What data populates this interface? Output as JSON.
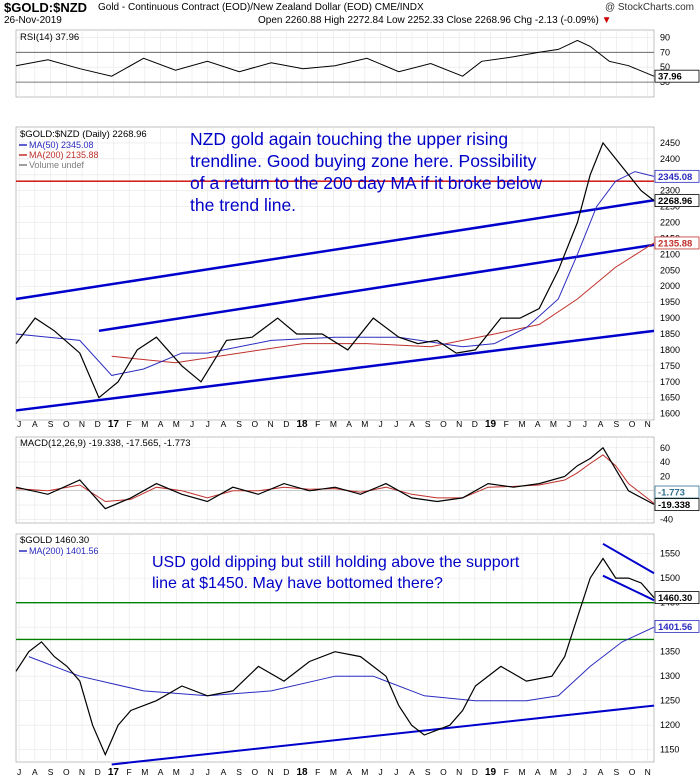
{
  "header": {
    "symbol": "$GOLD:$NZD",
    "description": "Gold - Continuous Contract (EOD)/New Zealand Dollar (EOD) CME/INDX",
    "credit": "@ StockCharts.com",
    "date": "26-Nov-2019",
    "ohlc": "Open 2260.88 High 2272.84 Low 2252.33 Close 2268.96 Chg -2.13 (-0.09%)",
    "down_marker": "▼"
  },
  "x_tick_labels": [
    "J",
    "A",
    "S",
    "O",
    "N",
    "D",
    "17",
    "F",
    "M",
    "A",
    "M",
    "J",
    "J",
    "A",
    "S",
    "O",
    "N",
    "D",
    "18",
    "F",
    "M",
    "A",
    "M",
    "J",
    "J",
    "A",
    "S",
    "O",
    "N",
    "D",
    "19",
    "F",
    "M",
    "A",
    "M",
    "J",
    "J",
    "A",
    "S",
    "O",
    "N"
  ],
  "colors": {
    "price": "#000000",
    "ma50": "#2b2bbf",
    "ma200": "#c0302c",
    "trendline": "#0000cc",
    "support": "#008000",
    "resistance": "#cc0000",
    "up_candle": "#000000",
    "down_candle": "#cc0000",
    "rsi_fill": "#7f7f7f",
    "macd_hist": "#2f6f8f"
  },
  "chart_data": [
    {
      "panel": "rsi",
      "type": "line",
      "title": "RSI(14) 37.96",
      "current_value_label": "37.96",
      "ylim": [
        10,
        100
      ],
      "yticks": [
        30,
        50,
        70,
        90
      ],
      "reference_lines": [
        30,
        70
      ],
      "points": [
        [
          0,
          52
        ],
        [
          0.05,
          60
        ],
        [
          0.1,
          48
        ],
        [
          0.15,
          38
        ],
        [
          0.2,
          62
        ],
        [
          0.25,
          46
        ],
        [
          0.3,
          58
        ],
        [
          0.35,
          44
        ],
        [
          0.4,
          56
        ],
        [
          0.45,
          48
        ],
        [
          0.5,
          52
        ],
        [
          0.55,
          62
        ],
        [
          0.6,
          44
        ],
        [
          0.65,
          55
        ],
        [
          0.7,
          38
        ],
        [
          0.73,
          58
        ],
        [
          0.78,
          64
        ],
        [
          0.82,
          70
        ],
        [
          0.85,
          74
        ],
        [
          0.88,
          86
        ],
        [
          0.9,
          78
        ],
        [
          0.93,
          58
        ],
        [
          0.96,
          52
        ],
        [
          1.0,
          38
        ]
      ]
    },
    {
      "panel": "nzd_gold",
      "type": "candlestick",
      "title": "$GOLD:$NZD (Daily) 2268.96",
      "legend": [
        {
          "label": "MA(50) 2345.08",
          "color": "#2b2bbf"
        },
        {
          "label": "MA(200) 2135.88",
          "color": "#c0302c"
        },
        {
          "label": "Volume undef",
          "color": "#7f7f7f"
        }
      ],
      "ylim": [
        1580,
        2500
      ],
      "yticks": [
        1600,
        1650,
        1700,
        1750,
        1800,
        1850,
        1900,
        1950,
        2000,
        2050,
        2100,
        2150,
        2200,
        2250,
        2300,
        2350,
        2400,
        2450
      ],
      "value_labels": [
        {
          "text": "2345.08",
          "value": 2345.08,
          "color": "#2b2bbf"
        },
        {
          "text": "2268.96",
          "value": 2268.96,
          "color": "#000000"
        },
        {
          "text": "2135.88",
          "value": 2135.88,
          "color": "#c0302c"
        }
      ],
      "price": [
        [
          0,
          1820
        ],
        [
          0.03,
          1900
        ],
        [
          0.06,
          1860
        ],
        [
          0.1,
          1790
        ],
        [
          0.13,
          1650
        ],
        [
          0.16,
          1700
        ],
        [
          0.19,
          1800
        ],
        [
          0.22,
          1840
        ],
        [
          0.26,
          1750
        ],
        [
          0.29,
          1700
        ],
        [
          0.33,
          1830
        ],
        [
          0.37,
          1840
        ],
        [
          0.41,
          1900
        ],
        [
          0.44,
          1850
        ],
        [
          0.48,
          1850
        ],
        [
          0.52,
          1800
        ],
        [
          0.56,
          1900
        ],
        [
          0.6,
          1840
        ],
        [
          0.63,
          1820
        ],
        [
          0.66,
          1830
        ],
        [
          0.69,
          1790
        ],
        [
          0.72,
          1800
        ],
        [
          0.76,
          1900
        ],
        [
          0.79,
          1900
        ],
        [
          0.82,
          1930
        ],
        [
          0.85,
          2050
        ],
        [
          0.88,
          2200
        ],
        [
          0.9,
          2350
        ],
        [
          0.92,
          2450
        ],
        [
          0.94,
          2400
        ],
        [
          0.96,
          2350
        ],
        [
          0.98,
          2300
        ],
        [
          1.0,
          2269
        ]
      ],
      "ma50": [
        [
          0,
          1850
        ],
        [
          0.1,
          1830
        ],
        [
          0.15,
          1720
        ],
        [
          0.2,
          1740
        ],
        [
          0.26,
          1790
        ],
        [
          0.3,
          1790
        ],
        [
          0.4,
          1830
        ],
        [
          0.5,
          1840
        ],
        [
          0.6,
          1840
        ],
        [
          0.7,
          1810
        ],
        [
          0.75,
          1820
        ],
        [
          0.8,
          1870
        ],
        [
          0.85,
          1960
        ],
        [
          0.88,
          2100
        ],
        [
          0.91,
          2250
        ],
        [
          0.94,
          2330
        ],
        [
          0.97,
          2360
        ],
        [
          1.0,
          2345
        ]
      ],
      "ma200": [
        [
          0.15,
          1780
        ],
        [
          0.25,
          1760
        ],
        [
          0.35,
          1790
        ],
        [
          0.45,
          1820
        ],
        [
          0.55,
          1820
        ],
        [
          0.65,
          1810
        ],
        [
          0.75,
          1850
        ],
        [
          0.82,
          1880
        ],
        [
          0.88,
          1960
        ],
        [
          0.94,
          2060
        ],
        [
          1.0,
          2136
        ]
      ],
      "horizontal_line": {
        "value": 2330,
        "color": "#cc0000"
      },
      "trendlines": [
        {
          "from": [
            0,
            1960
          ],
          "to": [
            1,
            2270
          ]
        },
        {
          "from": [
            0.13,
            1860
          ],
          "to": [
            1,
            2130
          ]
        },
        {
          "from": [
            0,
            1610
          ],
          "to": [
            1,
            1860
          ]
        }
      ],
      "annotation": "NZD gold again touching the upper rising trendline. Good buying zone here. Possibility of a return to the 200 day MA if it broke below the trend line."
    },
    {
      "panel": "macd",
      "type": "line",
      "title": "MACD(12,26,9) -19.338, -17.565, -1.773",
      "legend_values": [
        "-19.338",
        "-17.565",
        "-1.773"
      ],
      "ylim": [
        -45,
        75
      ],
      "yticks": [
        -40,
        -20,
        0,
        20,
        40,
        60
      ],
      "value_labels": [
        {
          "text": "-1.773",
          "value": -1.773,
          "color": "#2f6f8f"
        },
        {
          "text": "-19.338",
          "value": -19.338,
          "color": "#000000"
        }
      ],
      "macd": [
        [
          0,
          5
        ],
        [
          0.05,
          -5
        ],
        [
          0.1,
          15
        ],
        [
          0.14,
          -25
        ],
        [
          0.18,
          -10
        ],
        [
          0.22,
          10
        ],
        [
          0.26,
          -5
        ],
        [
          0.3,
          -15
        ],
        [
          0.34,
          5
        ],
        [
          0.38,
          -5
        ],
        [
          0.42,
          10
        ],
        [
          0.46,
          0
        ],
        [
          0.5,
          5
        ],
        [
          0.54,
          -5
        ],
        [
          0.58,
          10
        ],
        [
          0.62,
          -10
        ],
        [
          0.66,
          -15
        ],
        [
          0.7,
          -10
        ],
        [
          0.74,
          10
        ],
        [
          0.78,
          5
        ],
        [
          0.82,
          10
        ],
        [
          0.86,
          20
        ],
        [
          0.88,
          35
        ],
        [
          0.9,
          45
        ],
        [
          0.92,
          60
        ],
        [
          0.94,
          30
        ],
        [
          0.96,
          0
        ],
        [
          1.0,
          -19
        ]
      ],
      "signal": [
        [
          0,
          3
        ],
        [
          0.05,
          0
        ],
        [
          0.1,
          8
        ],
        [
          0.14,
          -15
        ],
        [
          0.18,
          -12
        ],
        [
          0.22,
          5
        ],
        [
          0.26,
          0
        ],
        [
          0.3,
          -10
        ],
        [
          0.34,
          0
        ],
        [
          0.38,
          0
        ],
        [
          0.42,
          5
        ],
        [
          0.46,
          2
        ],
        [
          0.5,
          3
        ],
        [
          0.54,
          -2
        ],
        [
          0.58,
          5
        ],
        [
          0.62,
          -5
        ],
        [
          0.66,
          -10
        ],
        [
          0.7,
          -10
        ],
        [
          0.74,
          5
        ],
        [
          0.78,
          6
        ],
        [
          0.82,
          8
        ],
        [
          0.86,
          15
        ],
        [
          0.88,
          25
        ],
        [
          0.9,
          38
        ],
        [
          0.92,
          50
        ],
        [
          0.94,
          35
        ],
        [
          0.96,
          10
        ],
        [
          1.0,
          -17.6
        ]
      ]
    },
    {
      "panel": "usd_gold",
      "type": "line",
      "title": "$GOLD 1460.30",
      "legend": [
        {
          "label": "MA(200) 1401.56",
          "color": "#2b2bbf"
        }
      ],
      "ylim": [
        1125,
        1590
      ],
      "yticks": [
        1150,
        1200,
        1250,
        1300,
        1350,
        1400,
        1450,
        1500,
        1550
      ],
      "value_labels": [
        {
          "text": "1460.30",
          "value": 1460.3,
          "color": "#000000"
        },
        {
          "text": "1401.56",
          "value": 1401.56,
          "color": "#2b2bbf"
        }
      ],
      "price": [
        [
          0,
          1310
        ],
        [
          0.02,
          1350
        ],
        [
          0.04,
          1370
        ],
        [
          0.06,
          1340
        ],
        [
          0.08,
          1320
        ],
        [
          0.1,
          1290
        ],
        [
          0.12,
          1200
        ],
        [
          0.14,
          1140
        ],
        [
          0.16,
          1200
        ],
        [
          0.18,
          1230
        ],
        [
          0.22,
          1250
        ],
        [
          0.26,
          1280
        ],
        [
          0.3,
          1260
        ],
        [
          0.34,
          1270
        ],
        [
          0.38,
          1320
        ],
        [
          0.42,
          1290
        ],
        [
          0.46,
          1330
        ],
        [
          0.5,
          1350
        ],
        [
          0.54,
          1340
        ],
        [
          0.58,
          1300
        ],
        [
          0.6,
          1240
        ],
        [
          0.62,
          1200
        ],
        [
          0.64,
          1180
        ],
        [
          0.68,
          1200
        ],
        [
          0.7,
          1230
        ],
        [
          0.72,
          1280
        ],
        [
          0.76,
          1320
        ],
        [
          0.8,
          1290
        ],
        [
          0.84,
          1300
        ],
        [
          0.86,
          1340
        ],
        [
          0.88,
          1420
        ],
        [
          0.9,
          1500
        ],
        [
          0.92,
          1540
        ],
        [
          0.94,
          1500
        ],
        [
          0.96,
          1500
        ],
        [
          0.98,
          1490
        ],
        [
          1.0,
          1460
        ]
      ],
      "ma200": [
        [
          0.02,
          1340
        ],
        [
          0.1,
          1300
        ],
        [
          0.2,
          1270
        ],
        [
          0.3,
          1260
        ],
        [
          0.4,
          1270
        ],
        [
          0.5,
          1300
        ],
        [
          0.56,
          1300
        ],
        [
          0.64,
          1260
        ],
        [
          0.72,
          1250
        ],
        [
          0.8,
          1250
        ],
        [
          0.85,
          1260
        ],
        [
          0.9,
          1320
        ],
        [
          0.95,
          1370
        ],
        [
          1.0,
          1400
        ]
      ],
      "horizontal_lines": [
        {
          "value": 1450,
          "color": "#008000"
        },
        {
          "value": 1375,
          "color": "#008000"
        }
      ],
      "trendlines": [
        {
          "from": [
            0.15,
            1120
          ],
          "to": [
            1,
            1240
          ]
        },
        {
          "from": [
            0.92,
            1570
          ],
          "to": [
            1,
            1510
          ]
        },
        {
          "from": [
            0.92,
            1505
          ],
          "to": [
            1,
            1455
          ]
        }
      ],
      "annotation": "USD gold dipping but still holding above the support line at $1450. May have bottomed there?"
    }
  ]
}
